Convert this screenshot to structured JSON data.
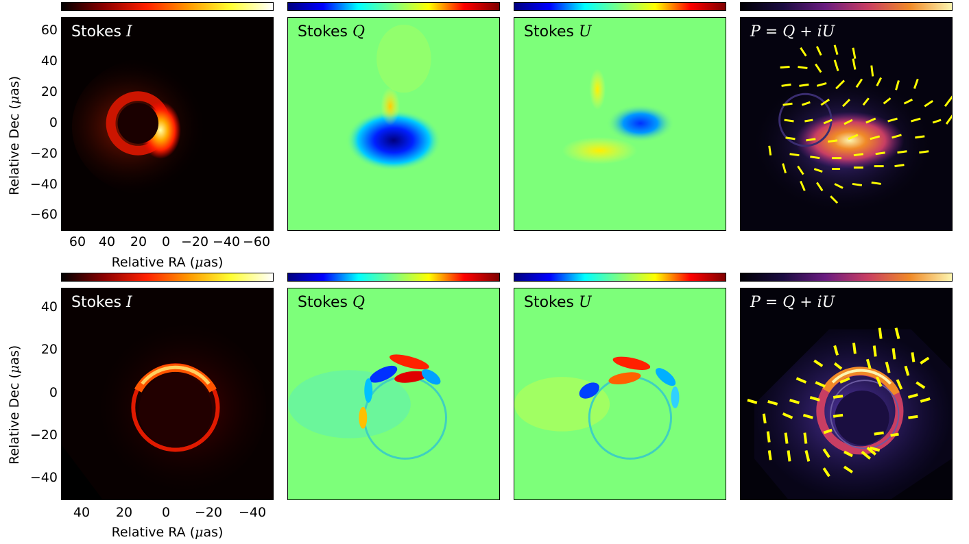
{
  "figure": {
    "rows": [
      {
        "panels": [
          {
            "title_prefix": "Stokes ",
            "title_math": "I",
            "colormap": "hot"
          },
          {
            "title_prefix": "Stokes ",
            "title_math": "Q",
            "colormap": "jet"
          },
          {
            "title_prefix": "Stokes ",
            "title_math": "U",
            "colormap": "jet"
          },
          {
            "title_prefix": "",
            "title_math": "P = Q + iU",
            "colormap": "inferno"
          }
        ],
        "y_ticks": [
          "60",
          "40",
          "20",
          "0",
          "−20",
          "−40",
          "−60"
        ],
        "x_ticks": [
          "60",
          "40",
          "20",
          "0",
          "−20",
          "−40",
          "−60"
        ],
        "y_label_text": "Relative Dec (",
        "y_label_unit": "μ",
        "y_label_tail": "as)",
        "x_label_text": "Relative RA (",
        "x_label_unit": "μ",
        "x_label_tail": "as)"
      },
      {
        "panels": [
          {
            "title_prefix": "Stokes ",
            "title_math": "I",
            "colormap": "hot"
          },
          {
            "title_prefix": "Stokes ",
            "title_math": "Q",
            "colormap": "jet"
          },
          {
            "title_prefix": "Stokes ",
            "title_math": "U",
            "colormap": "jet"
          },
          {
            "title_prefix": "",
            "title_math": "P = Q + iU",
            "colormap": "inferno"
          }
        ],
        "y_ticks": [
          "40",
          "20",
          "0",
          "−20",
          "−40"
        ],
        "x_ticks": [
          "40",
          "20",
          "0",
          "−20",
          "−40"
        ],
        "y_label_text": "Relative Dec (",
        "y_label_unit": "μ",
        "y_label_tail": "as)",
        "x_label_text": "Relative RA (",
        "x_label_unit": "μ",
        "x_label_tail": "as)"
      }
    ],
    "colors": {
      "hot": [
        "#000000",
        "#8b0000",
        "#ff2000",
        "#ff9900",
        "#ffff33",
        "#ffffff"
      ],
      "jet": [
        "#00007f",
        "#0000ff",
        "#00ffff",
        "#7fff7f",
        "#ffff00",
        "#ff0000",
        "#7f0000"
      ],
      "inferno": [
        "#000004",
        "#1b0c41",
        "#6a1c80",
        "#c83e63",
        "#f08a28",
        "#fcf5b0"
      ],
      "evpa": "#ffff00"
    }
  }
}
